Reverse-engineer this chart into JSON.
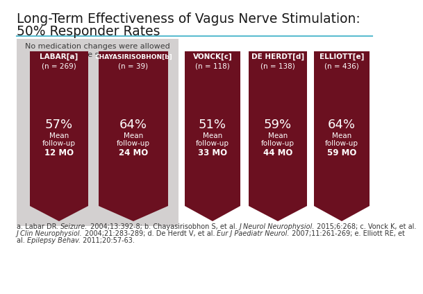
{
  "title_line1": "Long-Term Effectiveness of Vagus Nerve Stimulation:",
  "title_line2": "50% Responder Rates",
  "fig_bg": "#ffffff",
  "arrow_color": "#6b1020",
  "label_bg_color": "#6b1020",
  "gray_box_color": "#d3d0d0",
  "note_text": "No medication changes were allowed\nduring the study period",
  "studies": [
    {
      "name": "LABAR",
      "sup": "[a]",
      "n": "(n = 269)",
      "pct": "57%",
      "mo": "12 MO",
      "in_gray": true
    },
    {
      "name": "CHAYASIRISOBHON",
      "sup": "[b]",
      "n": "(n = 39)",
      "pct": "64%",
      "mo": "24 MO",
      "in_gray": true
    },
    {
      "name": "VONCK",
      "sup": "[c]",
      "n": "(n = 118)",
      "pct": "51%",
      "mo": "33 MO",
      "in_gray": false
    },
    {
      "name": "DE HERDT",
      "sup": "[d]",
      "n": "(n = 138)",
      "pct": "59%",
      "mo": "44 MO",
      "in_gray": false
    },
    {
      "name": "ELLIOTT",
      "sup": "[e]",
      "n": "(n = 436)",
      "pct": "64%",
      "mo": "59 MO",
      "in_gray": false
    }
  ],
  "footnote_parts": [
    {
      "text": "a. Labar DR. ",
      "italic": false
    },
    {
      "text": "Seizure.",
      "italic": true
    },
    {
      "text": " 2004;13:392-8; b. Chayasirisobhon S, et al. ",
      "italic": false
    },
    {
      "text": "J Neurol Neurophysiol.",
      "italic": true
    },
    {
      "text": " 2015;6:268; c. Vonck K, et al.",
      "italic": false
    }
  ],
  "footnote_line1_plain": "a. Labar DR. ",
  "footnote_line1_italic1": "Seizure.",
  "footnote_line1_mid": " 2004;13:392-8; b. Chayasirisobhon S, et al. ",
  "footnote_line1_italic2": "J Neurol Neurophysiol.",
  "footnote_line1_end": " 2015;6:268; c. Vonck K, et al.",
  "footnote_line2_plain": "J Clin Neurophysiol.",
  "footnote_line2_mid": " 2004;21:283-289; d. De Herdt V, et al. ",
  "footnote_line2_italic2": "Eur J Paediatr Neurol.",
  "footnote_line2_end": " 2007;11:261-269; e. Elliott RE, et",
  "footnote_line3": "al. ",
  "footnote_line3_italic": "Epilepsy Behav.",
  "footnote_line3_end": " 2011;20:57-63.",
  "teal_color": "#5bbcd0",
  "title_fontsize": 13.5,
  "footnote_fontsize": 7.0
}
